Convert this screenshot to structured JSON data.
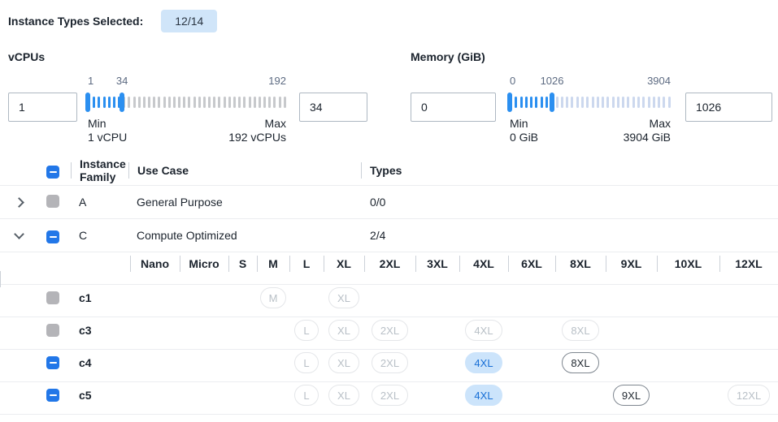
{
  "header": {
    "label": "Instance Types Selected:",
    "badge": "12/14"
  },
  "colors": {
    "slider_blue": "#2b8ff0",
    "checkbox_blue": "#2277e8",
    "badge_bg": "#d0e5f9",
    "selected_pill_bg": "#cce4fb",
    "selected_pill_text": "#186fd6",
    "disabled_gray": "#b4b4b8"
  },
  "filters": {
    "vcpus": {
      "title": "vCPUs",
      "min_value": "1",
      "max_value": "34",
      "scale": {
        "start_label": "1",
        "handle_label": "34",
        "end_label": "192"
      },
      "captions": {
        "min": "Min",
        "max": "Max",
        "min_detail": "1 vCPU",
        "max_detail": "192 vCPUs"
      },
      "slider": {
        "min": 1,
        "max": 192,
        "from": 1,
        "to": 34,
        "tick_count": 40,
        "inactive_color": "#c7c9cc"
      }
    },
    "memory": {
      "title": "Memory (GiB)",
      "min_value": "0",
      "max_value": "1026",
      "scale": {
        "start_label": "0",
        "handle_label": "1026",
        "end_label": "3904"
      },
      "captions": {
        "min": "Min",
        "max": "Max",
        "min_detail": "0 GiB",
        "max_detail": "3904 GiB"
      },
      "slider": {
        "min": 0,
        "max": 3904,
        "from": 0,
        "to": 1026,
        "tick_count": 32,
        "inactive_color": "#ccd8ee"
      }
    }
  },
  "table": {
    "header": {
      "family": "Instance Family",
      "use_case": "Use Case",
      "types": "Types",
      "select_all_state": "indeterminate"
    },
    "family_rows": [
      {
        "name": "A",
        "use_case": "General Purpose",
        "types": "0/0",
        "expanded": false,
        "checkbox": "disabled"
      },
      {
        "name": "C",
        "use_case": "Compute Optimized",
        "types": "2/4",
        "expanded": true,
        "checkbox": "indeterminate"
      }
    ],
    "sizes": [
      "Nano",
      "Micro",
      "S",
      "M",
      "L",
      "XL",
      "2XL",
      "3XL",
      "4XL",
      "6XL",
      "8XL",
      "9XL",
      "10XL",
      "12XL"
    ],
    "instance_rows": [
      {
        "name": "c1",
        "checkbox": "disabled",
        "pills": {
          "M": "disabled",
          "XL": "disabled"
        }
      },
      {
        "name": "c3",
        "checkbox": "disabled",
        "pills": {
          "L": "disabled",
          "XL": "disabled",
          "2XL": "disabled",
          "4XL": "disabled",
          "8XL": "disabled"
        }
      },
      {
        "name": "c4",
        "checkbox": "indeterminate",
        "pills": {
          "L": "disabled",
          "XL": "disabled",
          "2XL": "disabled",
          "4XL": "selected",
          "8XL": "available"
        }
      },
      {
        "name": "c5",
        "checkbox": "indeterminate",
        "pills": {
          "L": "disabled",
          "XL": "disabled",
          "2XL": "disabled",
          "4XL": "selected",
          "9XL": "available",
          "12XL": "disabled"
        }
      }
    ]
  }
}
